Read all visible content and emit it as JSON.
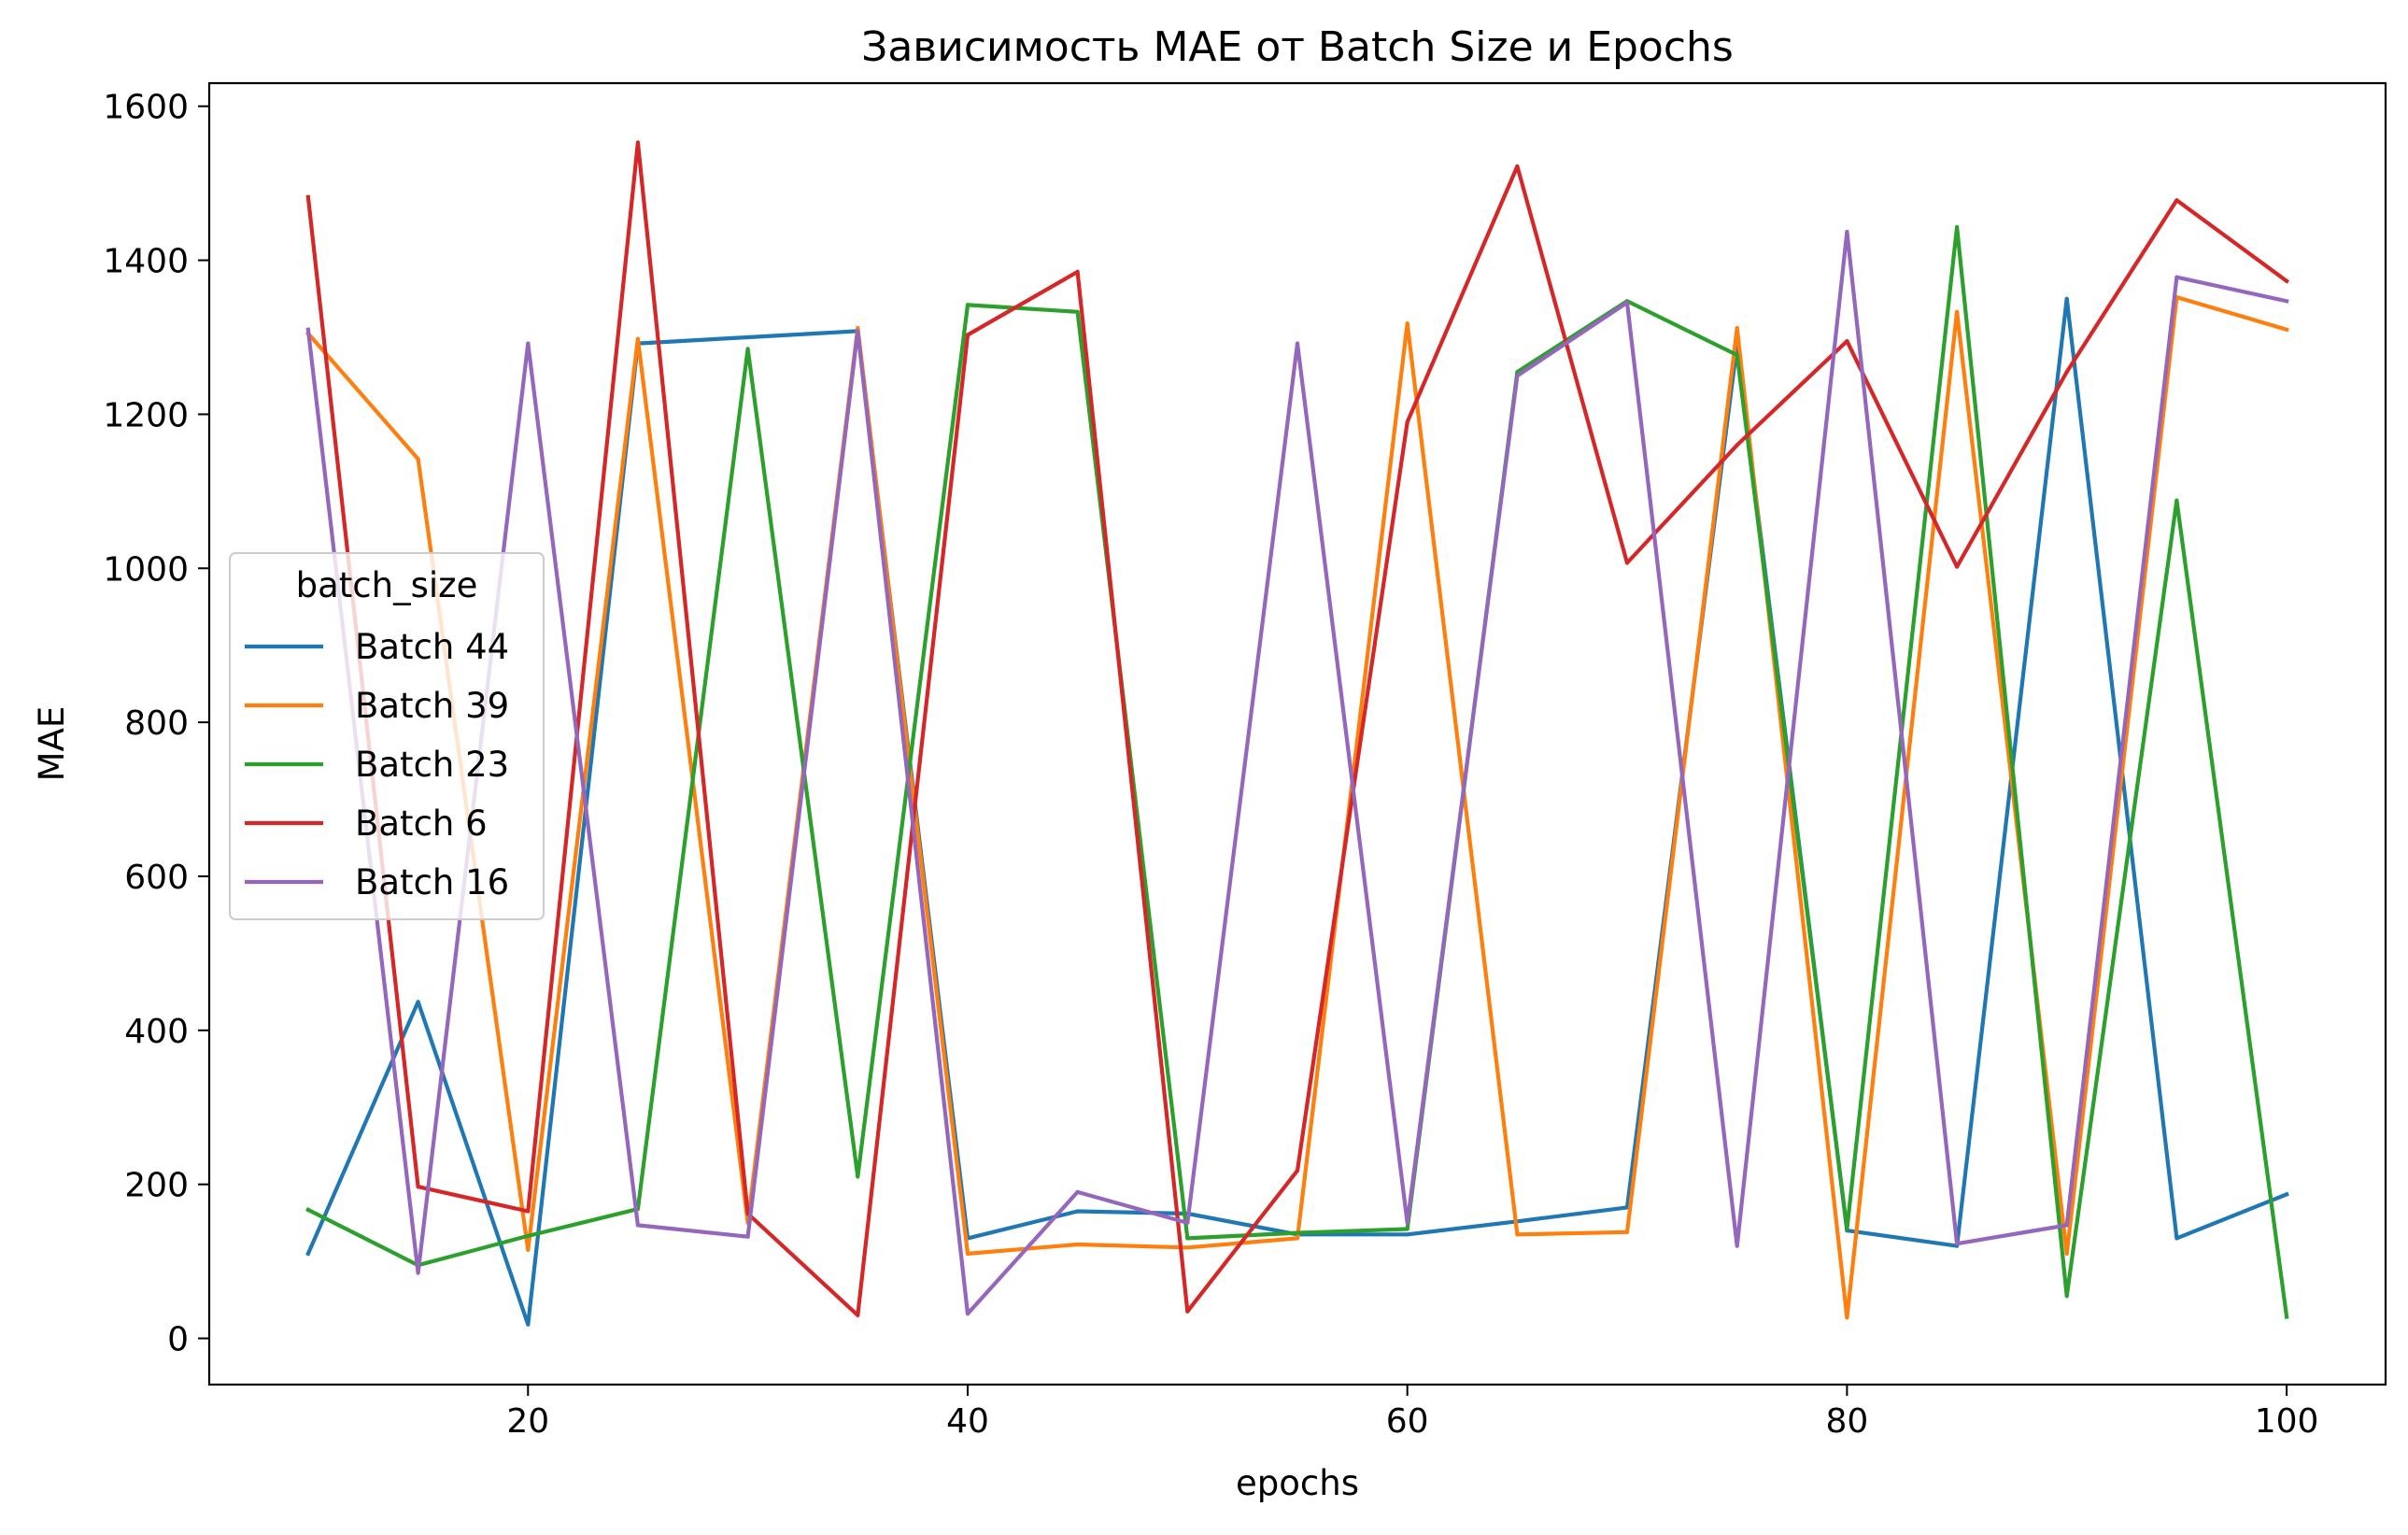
{
  "chart_data": {
    "type": "line",
    "title": "Зависимость MAE от Batch Size и Epochs",
    "xlabel": "epochs",
    "ylabel": "MAE",
    "xlim": [
      5.5,
      104.5
    ],
    "ylim": [
      -60,
      1630
    ],
    "xticks": [
      20,
      40,
      60,
      80,
      100
    ],
    "yticks": [
      0,
      200,
      400,
      600,
      800,
      1000,
      1200,
      1400,
      1600
    ],
    "grid": false,
    "legend": {
      "title": "batch_size",
      "placement": "center-left"
    },
    "x": [
      10,
      15,
      20,
      25,
      30,
      35,
      40,
      45,
      50,
      55,
      60,
      65,
      70,
      75,
      80,
      85,
      90,
      95,
      100
    ],
    "series": [
      {
        "name": "Batch 44",
        "color": "#1f77b4",
        "values": [
          110,
          437,
          18,
          1292,
          1300,
          1308,
          130,
          165,
          162,
          135,
          135,
          152,
          170,
          1290,
          140,
          120,
          1350,
          130,
          187
        ]
      },
      {
        "name": "Batch 39",
        "color": "#ff7f0e",
        "values": [
          1305,
          1142,
          115,
          1298,
          150,
          1312,
          110,
          122,
          118,
          130,
          1318,
          135,
          138,
          1312,
          27,
          1333,
          110,
          1352,
          1310
        ]
      },
      {
        "name": "Batch 23",
        "color": "#2ca02c",
        "values": [
          167,
          95,
          133,
          168,
          1285,
          210,
          1342,
          1333,
          130,
          137,
          142,
          1255,
          1347,
          1277,
          142,
          1443,
          55,
          1088,
          28
        ]
      },
      {
        "name": "Batch 6",
        "color": "#d62728",
        "values": [
          1482,
          197,
          165,
          1553,
          162,
          30,
          1303,
          1385,
          35,
          218,
          1190,
          1522,
          1007,
          1160,
          1295,
          1002,
          1255,
          1478,
          1373
        ]
      },
      {
        "name": "Batch 16",
        "color": "#9467bd",
        "values": [
          1310,
          85,
          1292,
          147,
          132,
          1308,
          32,
          190,
          150,
          1292,
          150,
          1250,
          1345,
          120,
          1437,
          123,
          147,
          1378,
          1347
        ]
      }
    ]
  }
}
